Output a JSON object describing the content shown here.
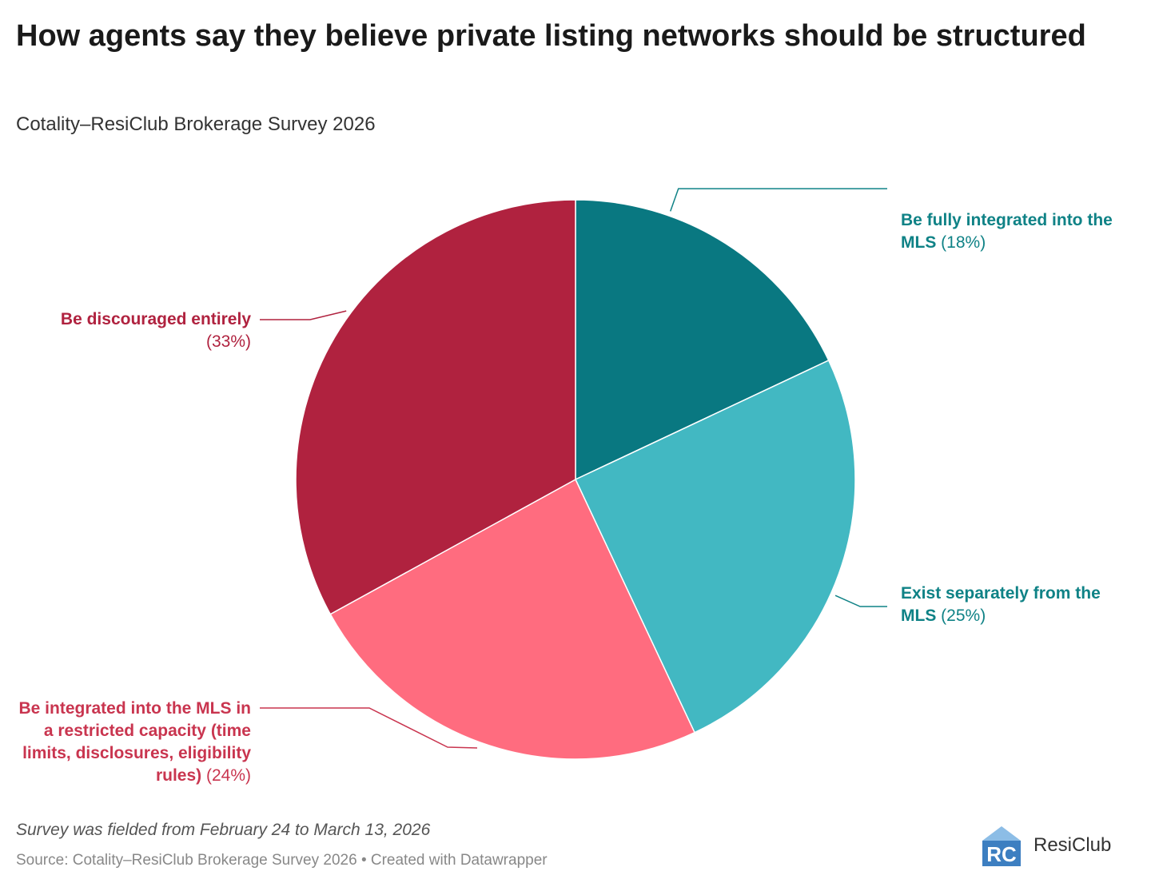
{
  "header": {
    "title": "How agents say they believe private listing networks should be structured",
    "subtitle": "Cotality–ResiClub Brokerage Survey 2026"
  },
  "chart_data": {
    "type": "pie",
    "title": "How agents say they believe private listing networks should be structured",
    "subtitle": "Cotality–ResiClub Brokerage Survey 2026",
    "slices": [
      {
        "name": "Be fully integrated into the MLS",
        "label_bold": "Be fully integrated into the MLS",
        "pct_text": "(18%)",
        "value": 18,
        "color": "#097881"
      },
      {
        "name": "Exist separately from the MLS",
        "label_bold": "Exist separately from the MLS",
        "pct_text": "(25%)",
        "value": 25,
        "color": "#42b8c2"
      },
      {
        "name": "Be integrated into the MLS in a restricted capacity (time limits, disclosures, eligibility rules)",
        "label_bold": "Be integrated into the MLS in a restricted capacity (time limits, disclosures, eligibility rules)",
        "pct_text": "(24%)",
        "value": 24,
        "color": "#ff6c7f"
      },
      {
        "name": "Be discouraged entirely",
        "label_bold": "Be discouraged entirely",
        "pct_text": "(33%)",
        "value": 33,
        "color": "#b0223f"
      }
    ],
    "label_colors": [
      "#0f8286",
      "#0f8286",
      "#c9354f",
      "#b0223f"
    ],
    "start": "12 o'clock",
    "direction": "clockwise"
  },
  "footer": {
    "notes": "Survey was fielded from February 24 to March 13, 2026",
    "source": "Source: Cotality–ResiClub Brokerage Survey 2026 • Created with Datawrapper",
    "logo_text": "ResiClub",
    "logo_mark_text": "RC"
  },
  "colors": {
    "logo_blue": "#3d7fc1",
    "logo_light": "#8cbde6"
  }
}
